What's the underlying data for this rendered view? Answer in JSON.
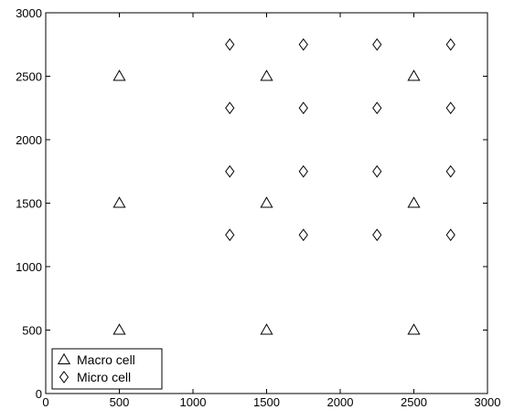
{
  "chart_data": {
    "type": "scatter",
    "title": "",
    "xlabel": "",
    "ylabel": "",
    "xlim": [
      0,
      3000
    ],
    "ylim": [
      0,
      3000
    ],
    "xticks": [
      0,
      500,
      1000,
      1500,
      2000,
      2500,
      3000
    ],
    "yticks": [
      0,
      500,
      1000,
      1500,
      2000,
      2500,
      3000
    ],
    "grid": false,
    "legend_position": "bottom-left",
    "series": [
      {
        "name": "Macro cell",
        "marker": "triangle",
        "color": "#000000",
        "points": [
          [
            500,
            2500
          ],
          [
            1500,
            2500
          ],
          [
            2500,
            2500
          ],
          [
            500,
            1500
          ],
          [
            1500,
            1500
          ],
          [
            2500,
            1500
          ],
          [
            500,
            500
          ],
          [
            1500,
            500
          ],
          [
            2500,
            500
          ]
        ]
      },
      {
        "name": "Micro cell",
        "marker": "diamond",
        "color": "#000000",
        "points": [
          [
            1250,
            2750
          ],
          [
            1750,
            2750
          ],
          [
            2250,
            2750
          ],
          [
            2750,
            2750
          ],
          [
            1250,
            2250
          ],
          [
            1750,
            2250
          ],
          [
            2250,
            2250
          ],
          [
            2750,
            2250
          ],
          [
            1250,
            1750
          ],
          [
            1750,
            1750
          ],
          [
            2250,
            1750
          ],
          [
            2750,
            1750
          ],
          [
            1250,
            1250
          ],
          [
            1750,
            1250
          ],
          [
            2250,
            1250
          ],
          [
            2750,
            1250
          ]
        ]
      }
    ]
  }
}
